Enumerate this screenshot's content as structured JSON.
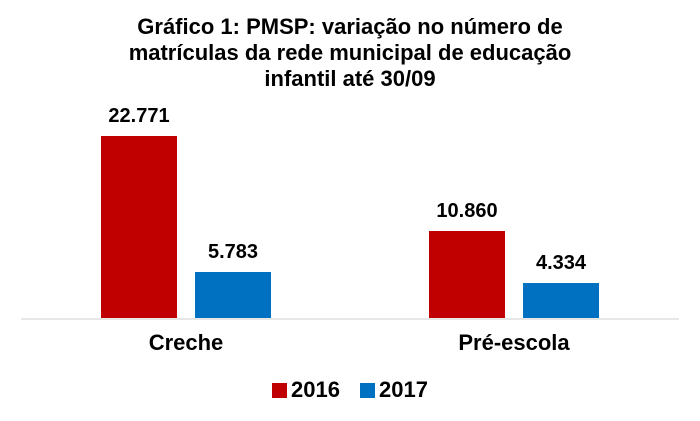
{
  "title": {
    "lines": [
      "Gráfico 1: PMSP: variação no número de",
      "matrículas da rede municipal de educação",
      "infantil até 30/09"
    ],
    "text": "Gráfico 1: PMSP: variação no número de matrículas da rede municipal de educação infantil até 30/09"
  },
  "chart_data": {
    "type": "bar",
    "title": "Gráfico 1: PMSP: variação no número de matrículas da rede municipal de educação infantil até 30/09",
    "categories": [
      "Creche",
      "Pré-escola"
    ],
    "series": [
      {
        "name": "2016",
        "color": "#c00000",
        "values": [
          22771,
          10860
        ],
        "value_labels": [
          "22.771",
          "10.860"
        ]
      },
      {
        "name": "2017",
        "color": "#0070c0",
        "values": [
          5783,
          4334
        ],
        "value_labels": [
          "5.783",
          "4.334"
        ]
      }
    ],
    "xlabel": "",
    "ylabel": "",
    "ylim": [
      0,
      25000
    ],
    "grid": false,
    "y_axis_visible": false,
    "legend_position": "bottom",
    "axis_line_color": "#e7e7e7",
    "value_label_format": "thousands-dot-separator"
  }
}
